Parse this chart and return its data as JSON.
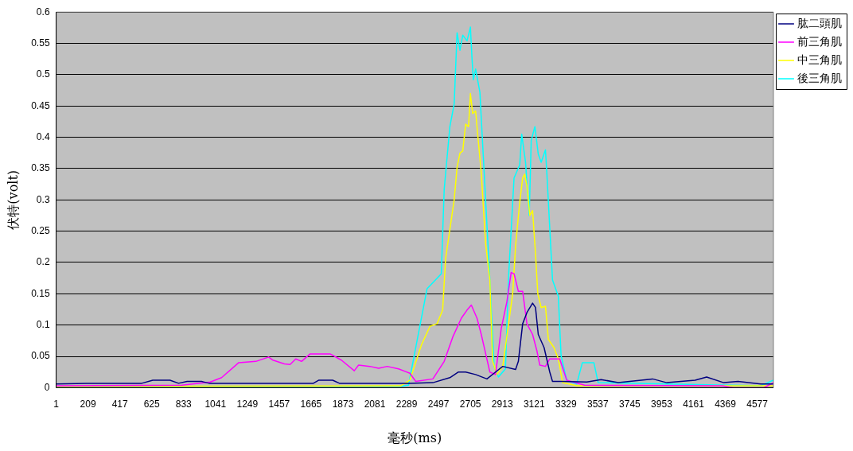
{
  "chart_data": {
    "type": "line",
    "xlabel": "毫秒(ms)",
    "ylabel": "伏特(volt)",
    "xlim": [
      1,
      4683
    ],
    "xticks": [
      1,
      209,
      417,
      625,
      833,
      1041,
      1249,
      1457,
      1665,
      1873,
      2081,
      2289,
      2497,
      2705,
      2913,
      3121,
      3329,
      3537,
      3745,
      3953,
      4161,
      4369,
      4577
    ],
    "ylim": [
      0,
      0.6
    ],
    "yticks": [
      0,
      0.05,
      0.1,
      0.15,
      0.2,
      0.25,
      0.3,
      0.35,
      0.4,
      0.45,
      0.5,
      0.55,
      0.6
    ],
    "grid": "y",
    "legend": "top right",
    "marker": "none",
    "line_style": "solid",
    "series": [
      {
        "name": "肱二頭肌",
        "color": "#000080",
        "x": [
          1,
          200,
          560,
          632,
          744,
          800,
          856,
          950,
          1000,
          1680,
          1716,
          1806,
          1850,
          2300,
          2460,
          2571,
          2627,
          2674,
          2739,
          2813,
          2869,
          2916,
          3000,
          3018,
          3046,
          3074,
          3111,
          3130,
          3148,
          3186,
          3223,
          3241,
          3297,
          3465,
          3558,
          3670,
          3894,
          3987,
          4172,
          4247,
          4359,
          4452,
          4600,
          4683
        ],
        "values": [
          0.006,
          0.007,
          0.007,
          0.012,
          0.012,
          0.007,
          0.01,
          0.01,
          0.007,
          0.007,
          0.012,
          0.012,
          0.007,
          0.007,
          0.008,
          0.016,
          0.025,
          0.025,
          0.021,
          0.014,
          0.025,
          0.034,
          0.029,
          0.042,
          0.102,
          0.12,
          0.135,
          0.128,
          0.085,
          0.064,
          0.025,
          0.01,
          0.01,
          0.009,
          0.013,
          0.008,
          0.014,
          0.008,
          0.012,
          0.017,
          0.008,
          0.01,
          0.006,
          0.006
        ]
      },
      {
        "name": "前三角肌",
        "color": "#ff00ff",
        "x": [
          1,
          822,
          1007,
          1081,
          1193,
          1305,
          1388,
          1416,
          1491,
          1528,
          1565,
          1603,
          1659,
          1733,
          1789,
          1863,
          1947,
          1975,
          2050,
          2106,
          2162,
          2236,
          2310,
          2348,
          2460,
          2534,
          2590,
          2646,
          2683,
          2711,
          2748,
          2776,
          2804,
          2832,
          2869,
          2906,
          2943,
          2971,
          2990,
          3018,
          3046,
          3074,
          3111,
          3139,
          3158,
          3195,
          3223,
          3288,
          3334,
          3450,
          4350,
          4420,
          4620,
          4683
        ],
        "values": [
          0.003,
          0.004,
          0.009,
          0.016,
          0.04,
          0.042,
          0.049,
          0.044,
          0.038,
          0.037,
          0.046,
          0.042,
          0.054,
          0.054,
          0.054,
          0.044,
          0.027,
          0.036,
          0.034,
          0.031,
          0.034,
          0.03,
          0.023,
          0.01,
          0.014,
          0.042,
          0.081,
          0.111,
          0.124,
          0.132,
          0.111,
          0.085,
          0.055,
          0.025,
          0.021,
          0.094,
          0.137,
          0.184,
          0.182,
          0.154,
          0.154,
          0.102,
          0.085,
          0.059,
          0.036,
          0.034,
          0.046,
          0.046,
          0.012,
          0.004,
          0.003,
          0,
          0,
          0.008
        ]
      },
      {
        "name": "中三角肌",
        "color": "#ffff00",
        "x": [
          1,
          2250,
          2310,
          2385,
          2441,
          2487,
          2524,
          2543,
          2599,
          2618,
          2637,
          2655,
          2674,
          2693,
          2705,
          2720,
          2739,
          2748,
          2776,
          2804,
          2832,
          2850,
          2878,
          2916,
          2981,
          3000,
          3027,
          3046,
          3059,
          3074,
          3093,
          3111,
          3130,
          3145,
          3167,
          3195,
          3214,
          3251,
          3279,
          3307,
          3400,
          4683
        ],
        "values": [
          0.002,
          0.003,
          0.012,
          0.068,
          0.098,
          0.102,
          0.124,
          0.206,
          0.3,
          0.352,
          0.375,
          0.378,
          0.421,
          0.417,
          0.47,
          0.438,
          0.442,
          0.417,
          0.343,
          0.231,
          0.172,
          0.043,
          0.021,
          0.034,
          0.15,
          0.227,
          0.296,
          0.335,
          0.341,
          0.322,
          0.275,
          0.283,
          0.214,
          0.15,
          0.128,
          0.13,
          0.077,
          0.064,
          0.046,
          0.008,
          0.003,
          0.003
        ]
      },
      {
        "name": "後三角肌",
        "color": "#00ffff",
        "x": [
          1,
          2250,
          2301,
          2348,
          2422,
          2515,
          2534,
          2571,
          2599,
          2618,
          2637,
          2655,
          2683,
          2705,
          2716,
          2724,
          2739,
          2767,
          2795,
          2832,
          2860,
          2888,
          2934,
          2953,
          2990,
          3027,
          3040,
          3065,
          3089,
          3102,
          3126,
          3148,
          3167,
          3195,
          3204,
          3241,
          3279,
          3297,
          3334,
          3399,
          3436,
          3511,
          3539,
          4600,
          4683
        ],
        "values": [
          0.002,
          0.002,
          0.004,
          0.064,
          0.158,
          0.182,
          0.317,
          0.417,
          0.453,
          0.567,
          0.539,
          0.563,
          0.554,
          0.576,
          0.524,
          0.492,
          0.509,
          0.472,
          0.343,
          0.172,
          0.034,
          0.017,
          0.03,
          0.172,
          0.335,
          0.356,
          0.405,
          0.36,
          0.275,
          0.395,
          0.417,
          0.373,
          0.36,
          0.38,
          0.343,
          0.172,
          0.146,
          0.051,
          0.012,
          0.006,
          0.04,
          0.04,
          0.008,
          0.003,
          0.012
        ]
      }
    ]
  }
}
